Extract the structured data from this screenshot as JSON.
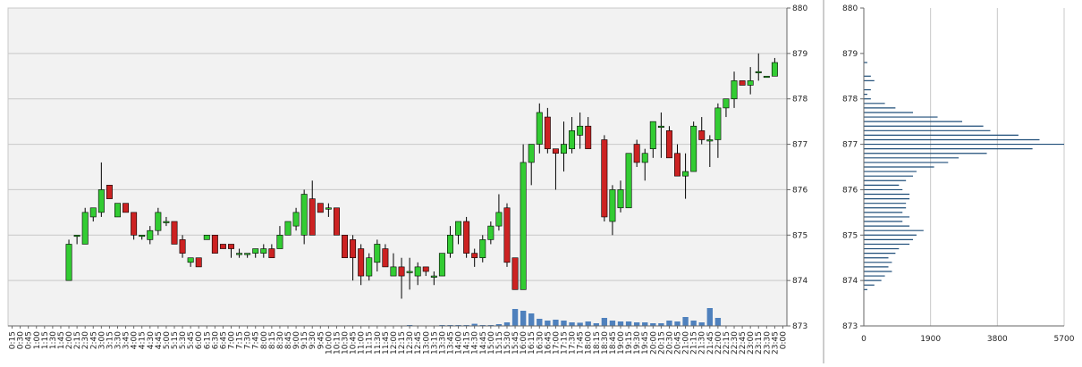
{
  "colors": {
    "plot_bg": "#f2f2f2",
    "grid": "#c8c8c8",
    "up": "#33cc33",
    "down": "#cc2222",
    "volume": "#4f81bd",
    "profile": "#1f4e79",
    "divider": "#9a9a9a"
  },
  "chart_data": [
    {
      "type": "candlestick",
      "title": "",
      "x_tick_labels": [
        "0:15",
        "0:30",
        "0:45",
        "1:00",
        "1:15",
        "1:30",
        "1:45",
        "2:00",
        "2:15",
        "2:30",
        "2:45",
        "3:00",
        "3:15",
        "3:30",
        "3:45",
        "4:00",
        "4:15",
        "4:30",
        "4:45",
        "5:00",
        "5:15",
        "5:30",
        "5:45",
        "6:00",
        "6:15",
        "6:30",
        "6:45",
        "7:00",
        "7:15",
        "7:30",
        "7:45",
        "8:00",
        "8:15",
        "8:30",
        "8:45",
        "9:00",
        "9:15",
        "9:30",
        "9:45",
        "10:00",
        "10:15",
        "10:30",
        "10:45",
        "11:00",
        "11:15",
        "11:30",
        "11:45",
        "12:00",
        "12:15",
        "12:30",
        "12:45",
        "13:00",
        "13:15",
        "13:30",
        "13:45",
        "14:00",
        "14:15",
        "14:30",
        "14:45",
        "15:00",
        "15:15",
        "15:30",
        "15:45",
        "16:00",
        "16:15",
        "16:30",
        "16:45",
        "17:00",
        "17:15",
        "17:30",
        "17:45",
        "18:00",
        "18:15",
        "18:30",
        "18:45",
        "19:00",
        "19:15",
        "19:30",
        "19:45",
        "20:00",
        "20:15",
        "20:30",
        "20:45",
        "21:00",
        "21:15",
        "21:30",
        "21:45",
        "22:00",
        "22:15",
        "22:30",
        "22:45",
        "23:00",
        "23:15",
        "23:30",
        "23:45",
        "0:00"
      ],
      "y_ticks": [
        873,
        874,
        875,
        876,
        877,
        878,
        879,
        880
      ],
      "ylim": [
        873,
        880
      ],
      "grid": true,
      "candles": [
        {
          "x": "2:00",
          "o": 874.0,
          "h": 874.9,
          "l": 874.0,
          "c": 874.8
        },
        {
          "x": "2:15",
          "o": 875.0,
          "h": 875.0,
          "l": 874.8,
          "c": 875.0
        },
        {
          "x": "2:30",
          "o": 874.8,
          "h": 875.6,
          "l": 874.8,
          "c": 875.5
        },
        {
          "x": "2:45",
          "o": 875.4,
          "h": 875.6,
          "l": 875.3,
          "c": 875.6
        },
        {
          "x": "3:00",
          "o": 875.5,
          "h": 876.6,
          "l": 875.4,
          "c": 876.0
        },
        {
          "x": "3:15",
          "o": 876.1,
          "h": 876.1,
          "l": 875.8,
          "c": 875.8
        },
        {
          "x": "3:30",
          "o": 875.4,
          "h": 875.7,
          "l": 875.4,
          "c": 875.7
        },
        {
          "x": "3:45",
          "o": 875.7,
          "h": 875.7,
          "l": 875.5,
          "c": 875.5
        },
        {
          "x": "4:00",
          "o": 875.5,
          "h": 875.5,
          "l": 874.9,
          "c": 875.0
        },
        {
          "x": "4:15",
          "o": 875.0,
          "h": 875.0,
          "l": 874.9,
          "c": 875.0
        },
        {
          "x": "4:30",
          "o": 874.9,
          "h": 875.2,
          "l": 874.8,
          "c": 875.1
        },
        {
          "x": "4:45",
          "o": 875.1,
          "h": 875.6,
          "l": 875.0,
          "c": 875.5
        },
        {
          "x": "5:00",
          "o": 875.3,
          "h": 875.4,
          "l": 875.2,
          "c": 875.3
        },
        {
          "x": "5:15",
          "o": 875.3,
          "h": 875.3,
          "l": 874.8,
          "c": 874.8
        },
        {
          "x": "5:30",
          "o": 874.9,
          "h": 875.0,
          "l": 874.5,
          "c": 874.6
        },
        {
          "x": "5:45",
          "o": 874.4,
          "h": 874.5,
          "l": 874.3,
          "c": 874.5
        },
        {
          "x": "6:00",
          "o": 874.5,
          "h": 874.5,
          "l": 874.3,
          "c": 874.3
        },
        {
          "x": "6:15",
          "o": 874.9,
          "h": 875.0,
          "l": 874.9,
          "c": 875.0
        },
        {
          "x": "6:30",
          "o": 875.0,
          "h": 875.0,
          "l": 874.6,
          "c": 874.6
        },
        {
          "x": "6:45",
          "o": 874.8,
          "h": 874.8,
          "l": 874.7,
          "c": 874.7
        },
        {
          "x": "7:00",
          "o": 874.8,
          "h": 874.8,
          "l": 874.5,
          "c": 874.7
        },
        {
          "x": "7:15",
          "o": 874.6,
          "h": 874.7,
          "l": 874.5,
          "c": 874.6
        },
        {
          "x": "7:30",
          "o": 874.6,
          "h": 874.6,
          "l": 874.5,
          "c": 874.6
        },
        {
          "x": "7:45",
          "o": 874.6,
          "h": 874.7,
          "l": 874.5,
          "c": 874.7
        },
        {
          "x": "8:00",
          "o": 874.6,
          "h": 874.8,
          "l": 874.5,
          "c": 874.7
        },
        {
          "x": "8:15",
          "o": 874.7,
          "h": 874.8,
          "l": 874.5,
          "c": 874.5
        },
        {
          "x": "8:30",
          "o": 874.7,
          "h": 875.2,
          "l": 874.7,
          "c": 875.0
        },
        {
          "x": "8:45",
          "o": 875.0,
          "h": 875.3,
          "l": 875.0,
          "c": 875.3
        },
        {
          "x": "9:00",
          "o": 875.2,
          "h": 875.6,
          "l": 875.1,
          "c": 875.5
        },
        {
          "x": "9:15",
          "o": 875.0,
          "h": 876.0,
          "l": 874.8,
          "c": 875.9
        },
        {
          "x": "9:30",
          "o": 875.8,
          "h": 876.2,
          "l": 875.0,
          "c": 875.0
        },
        {
          "x": "9:45",
          "o": 875.7,
          "h": 875.7,
          "l": 875.5,
          "c": 875.5
        },
        {
          "x": "10:00",
          "o": 875.6,
          "h": 875.7,
          "l": 875.4,
          "c": 875.6
        },
        {
          "x": "10:15",
          "o": 875.6,
          "h": 875.6,
          "l": 875.0,
          "c": 875.0
        },
        {
          "x": "10:30",
          "o": 875.0,
          "h": 875.0,
          "l": 874.5,
          "c": 874.5
        },
        {
          "x": "10:45",
          "o": 874.9,
          "h": 875.0,
          "l": 874.0,
          "c": 874.5
        },
        {
          "x": "11:00",
          "o": 874.7,
          "h": 874.8,
          "l": 873.9,
          "c": 874.1
        },
        {
          "x": "11:15",
          "o": 874.1,
          "h": 874.6,
          "l": 874.0,
          "c": 874.5
        },
        {
          "x": "11:30",
          "o": 874.4,
          "h": 874.9,
          "l": 874.2,
          "c": 874.8
        },
        {
          "x": "11:45",
          "o": 874.7,
          "h": 874.8,
          "l": 874.3,
          "c": 874.3
        },
        {
          "x": "12:00",
          "o": 874.1,
          "h": 874.6,
          "l": 874.1,
          "c": 874.3
        },
        {
          "x": "12:15",
          "o": 874.3,
          "h": 874.5,
          "l": 873.6,
          "c": 874.1
        },
        {
          "x": "12:30",
          "o": 874.2,
          "h": 874.5,
          "l": 873.8,
          "c": 874.2
        },
        {
          "x": "12:45",
          "o": 874.1,
          "h": 874.4,
          "l": 873.9,
          "c": 874.3
        },
        {
          "x": "13:00",
          "o": 874.3,
          "h": 874.3,
          "l": 874.1,
          "c": 874.2
        },
        {
          "x": "13:15",
          "o": 874.1,
          "h": 874.2,
          "l": 873.9,
          "c": 874.1
        },
        {
          "x": "13:30",
          "o": 874.1,
          "h": 874.6,
          "l": 874.1,
          "c": 874.6
        },
        {
          "x": "13:45",
          "o": 874.6,
          "h": 875.2,
          "l": 874.5,
          "c": 875.0
        },
        {
          "x": "14:00",
          "o": 875.0,
          "h": 875.3,
          "l": 874.8,
          "c": 875.3
        },
        {
          "x": "14:15",
          "o": 875.3,
          "h": 875.4,
          "l": 874.5,
          "c": 874.6
        },
        {
          "x": "14:30",
          "o": 874.6,
          "h": 874.7,
          "l": 874.3,
          "c": 874.5
        },
        {
          "x": "14:45",
          "o": 874.5,
          "h": 875.0,
          "l": 874.4,
          "c": 874.9
        },
        {
          "x": "15:00",
          "o": 874.9,
          "h": 875.3,
          "l": 874.8,
          "c": 875.2
        },
        {
          "x": "15:15",
          "o": 875.2,
          "h": 875.9,
          "l": 875.1,
          "c": 875.5
        },
        {
          "x": "15:30",
          "o": 875.6,
          "h": 875.7,
          "l": 874.3,
          "c": 874.4
        },
        {
          "x": "15:45",
          "o": 874.5,
          "h": 874.5,
          "l": 873.8,
          "c": 873.8
        },
        {
          "x": "16:00",
          "o": 873.8,
          "h": 877.0,
          "l": 873.8,
          "c": 876.6
        },
        {
          "x": "16:15",
          "o": 876.6,
          "h": 877.0,
          "l": 876.1,
          "c": 877.0
        },
        {
          "x": "16:30",
          "o": 877.0,
          "h": 877.9,
          "l": 876.8,
          "c": 877.7
        },
        {
          "x": "16:45",
          "o": 877.6,
          "h": 877.8,
          "l": 876.8,
          "c": 876.9
        },
        {
          "x": "17:00",
          "o": 876.9,
          "h": 876.9,
          "l": 876.0,
          "c": 876.8
        },
        {
          "x": "17:15",
          "o": 876.8,
          "h": 877.5,
          "l": 876.4,
          "c": 877.0
        },
        {
          "x": "17:30",
          "o": 876.9,
          "h": 877.6,
          "l": 876.8,
          "c": 877.3
        },
        {
          "x": "17:45",
          "o": 877.2,
          "h": 877.7,
          "l": 876.9,
          "c": 877.4
        },
        {
          "x": "18:00",
          "o": 877.4,
          "h": 877.6,
          "l": 876.9,
          "c": 876.9
        },
        {
          "x": "18:30",
          "o": 877.1,
          "h": 877.2,
          "l": 875.3,
          "c": 875.4
        },
        {
          "x": "18:45",
          "o": 875.3,
          "h": 876.1,
          "l": 875.0,
          "c": 876.0
        },
        {
          "x": "19:00",
          "o": 875.6,
          "h": 876.2,
          "l": 875.5,
          "c": 876.0
        },
        {
          "x": "19:15",
          "o": 875.6,
          "h": 876.8,
          "l": 875.6,
          "c": 876.8
        },
        {
          "x": "19:30",
          "o": 877.0,
          "h": 877.1,
          "l": 876.5,
          "c": 876.6
        },
        {
          "x": "19:45",
          "o": 876.6,
          "h": 876.9,
          "l": 876.2,
          "c": 876.8
        },
        {
          "x": "20:00",
          "o": 876.9,
          "h": 877.5,
          "l": 876.7,
          "c": 877.5
        },
        {
          "x": "20:15",
          "o": 877.4,
          "h": 877.7,
          "l": 876.7,
          "c": 877.4
        },
        {
          "x": "20:30",
          "o": 877.3,
          "h": 877.4,
          "l": 876.7,
          "c": 876.7
        },
        {
          "x": "20:45",
          "o": 876.8,
          "h": 877.0,
          "l": 876.3,
          "c": 876.3
        },
        {
          "x": "21:00",
          "o": 876.3,
          "h": 876.8,
          "l": 875.8,
          "c": 876.4
        },
        {
          "x": "21:15",
          "o": 876.4,
          "h": 877.5,
          "l": 876.4,
          "c": 877.4
        },
        {
          "x": "21:30",
          "o": 877.3,
          "h": 877.6,
          "l": 877.0,
          "c": 877.1
        },
        {
          "x": "21:45",
          "o": 877.1,
          "h": 877.2,
          "l": 876.5,
          "c": 877.1
        },
        {
          "x": "22:00",
          "o": 877.1,
          "h": 877.9,
          "l": 876.7,
          "c": 877.8
        },
        {
          "x": "22:15",
          "o": 877.8,
          "h": 878.0,
          "l": 877.6,
          "c": 878.0
        },
        {
          "x": "22:30",
          "o": 878.0,
          "h": 878.6,
          "l": 877.8,
          "c": 878.4
        },
        {
          "x": "22:45",
          "o": 878.4,
          "h": 878.4,
          "l": 878.3,
          "c": 878.3
        },
        {
          "x": "23:00",
          "o": 878.3,
          "h": 878.7,
          "l": 878.1,
          "c": 878.4
        },
        {
          "x": "23:15",
          "o": 878.6,
          "h": 879.0,
          "l": 878.4,
          "c": 878.6
        },
        {
          "x": "23:30",
          "o": 878.5,
          "h": 878.5,
          "l": 878.5,
          "c": 878.5
        },
        {
          "x": "23:45",
          "o": 878.5,
          "h": 878.9,
          "l": 878.5,
          "c": 878.8
        }
      ],
      "volume": [
        {
          "x": "12:30",
          "v": 3
        },
        {
          "x": "13:30",
          "v": 3
        },
        {
          "x": "13:45",
          "v": 5
        },
        {
          "x": "14:00",
          "v": 4
        },
        {
          "x": "14:15",
          "v": 5
        },
        {
          "x": "14:30",
          "v": 12
        },
        {
          "x": "14:45",
          "v": 4
        },
        {
          "x": "15:00",
          "v": 3
        },
        {
          "x": "15:15",
          "v": 10
        },
        {
          "x": "15:30",
          "v": 20
        },
        {
          "x": "15:45",
          "v": 95
        },
        {
          "x": "16:00",
          "v": 85
        },
        {
          "x": "16:15",
          "v": 70
        },
        {
          "x": "16:30",
          "v": 40
        },
        {
          "x": "16:45",
          "v": 30
        },
        {
          "x": "17:00",
          "v": 35
        },
        {
          "x": "17:15",
          "v": 30
        },
        {
          "x": "17:30",
          "v": 20
        },
        {
          "x": "17:45",
          "v": 18
        },
        {
          "x": "18:00",
          "v": 25
        },
        {
          "x": "18:15",
          "v": 15
        },
        {
          "x": "18:30",
          "v": 45
        },
        {
          "x": "18:45",
          "v": 30
        },
        {
          "x": "19:00",
          "v": 25
        },
        {
          "x": "19:15",
          "v": 25
        },
        {
          "x": "19:30",
          "v": 20
        },
        {
          "x": "19:45",
          "v": 20
        },
        {
          "x": "20:00",
          "v": 15
        },
        {
          "x": "20:15",
          "v": 15
        },
        {
          "x": "20:30",
          "v": 30
        },
        {
          "x": "20:45",
          "v": 25
        },
        {
          "x": "21:00",
          "v": 50
        },
        {
          "x": "21:15",
          "v": 30
        },
        {
          "x": "21:30",
          "v": 20
        },
        {
          "x": "21:45",
          "v": 100
        },
        {
          "x": "22:00",
          "v": 45
        }
      ]
    },
    {
      "type": "bar",
      "orientation": "horizontal",
      "title": "",
      "x_ticks": [
        0,
        1900,
        3800,
        5700
      ],
      "xlim": [
        0,
        5700
      ],
      "y_ticks": [
        873,
        874,
        875,
        876,
        877,
        878,
        879,
        880
      ],
      "ylim": [
        873,
        880
      ],
      "grid": true,
      "profile": [
        {
          "price": 873.8,
          "v": 100
        },
        {
          "price": 873.9,
          "v": 300
        },
        {
          "price": 874.0,
          "v": 500
        },
        {
          "price": 874.1,
          "v": 600
        },
        {
          "price": 874.2,
          "v": 800
        },
        {
          "price": 874.3,
          "v": 700
        },
        {
          "price": 874.4,
          "v": 800
        },
        {
          "price": 874.5,
          "v": 700
        },
        {
          "price": 874.6,
          "v": 900
        },
        {
          "price": 874.7,
          "v": 1000
        },
        {
          "price": 874.8,
          "v": 1300
        },
        {
          "price": 874.9,
          "v": 1400
        },
        {
          "price": 875.0,
          "v": 1500
        },
        {
          "price": 875.1,
          "v": 1700
        },
        {
          "price": 875.2,
          "v": 1300
        },
        {
          "price": 875.3,
          "v": 1100
        },
        {
          "price": 875.4,
          "v": 1300
        },
        {
          "price": 875.5,
          "v": 1100
        },
        {
          "price": 875.6,
          "v": 1200
        },
        {
          "price": 875.7,
          "v": 1200
        },
        {
          "price": 875.8,
          "v": 1300
        },
        {
          "price": 875.9,
          "v": 1300
        },
        {
          "price": 876.0,
          "v": 1100
        },
        {
          "price": 876.1,
          "v": 1000
        },
        {
          "price": 876.2,
          "v": 1200
        },
        {
          "price": 876.3,
          "v": 1400
        },
        {
          "price": 876.4,
          "v": 1500
        },
        {
          "price": 876.5,
          "v": 2000
        },
        {
          "price": 876.6,
          "v": 2400
        },
        {
          "price": 876.7,
          "v": 2700
        },
        {
          "price": 876.8,
          "v": 3500
        },
        {
          "price": 876.9,
          "v": 4800
        },
        {
          "price": 877.0,
          "v": 5700
        },
        {
          "price": 877.1,
          "v": 5000
        },
        {
          "price": 877.2,
          "v": 4400
        },
        {
          "price": 877.3,
          "v": 3600
        },
        {
          "price": 877.4,
          "v": 3400
        },
        {
          "price": 877.5,
          "v": 2800
        },
        {
          "price": 877.6,
          "v": 2100
        },
        {
          "price": 877.7,
          "v": 1400
        },
        {
          "price": 877.8,
          "v": 900
        },
        {
          "price": 877.9,
          "v": 600
        },
        {
          "price": 878.0,
          "v": 200
        },
        {
          "price": 878.1,
          "v": 100
        },
        {
          "price": 878.2,
          "v": 200
        },
        {
          "price": 878.4,
          "v": 300
        },
        {
          "price": 878.5,
          "v": 200
        },
        {
          "price": 878.8,
          "v": 100
        }
      ]
    }
  ]
}
